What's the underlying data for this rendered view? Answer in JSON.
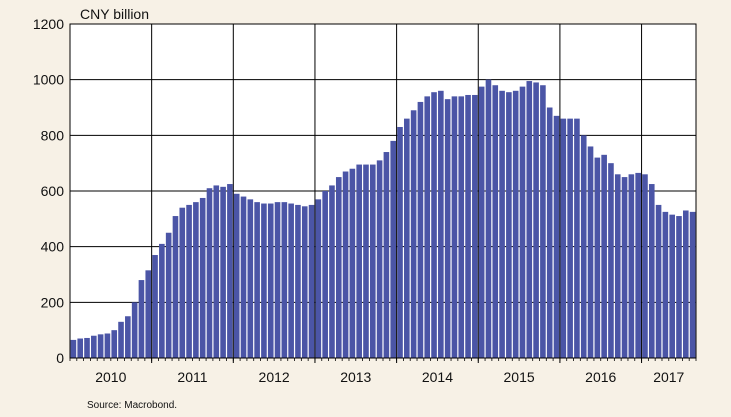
{
  "chart_data": {
    "type": "bar",
    "title": "",
    "unit_label": "CNY billion",
    "source": "Source: Macrobond.",
    "ylim": [
      0,
      1200
    ],
    "y_ticks": [
      0,
      200,
      400,
      600,
      800,
      1000,
      1200
    ],
    "x_tick_labels": [
      "2010",
      "2011",
      "2012",
      "2013",
      "2014",
      "2015",
      "2016",
      "2017"
    ],
    "x_start": "2010-01",
    "grid": true,
    "legend": "none",
    "bar_color": "#4b55a6",
    "values": [
      65,
      70,
      72,
      80,
      85,
      88,
      100,
      130,
      150,
      200,
      280,
      315,
      370,
      410,
      450,
      510,
      540,
      550,
      560,
      575,
      610,
      620,
      615,
      625,
      590,
      580,
      570,
      560,
      555,
      555,
      560,
      560,
      555,
      550,
      545,
      550,
      570,
      600,
      620,
      650,
      670,
      680,
      695,
      695,
      695,
      710,
      740,
      780,
      830,
      860,
      890,
      920,
      940,
      955,
      960,
      930,
      940,
      940,
      945,
      945,
      975,
      1000,
      980,
      960,
      955,
      960,
      975,
      995,
      990,
      980,
      900,
      870,
      860,
      860,
      860,
      800,
      760,
      720,
      730,
      700,
      660,
      650,
      660,
      665,
      660,
      625,
      550,
      525,
      515,
      510,
      530,
      525
    ]
  }
}
